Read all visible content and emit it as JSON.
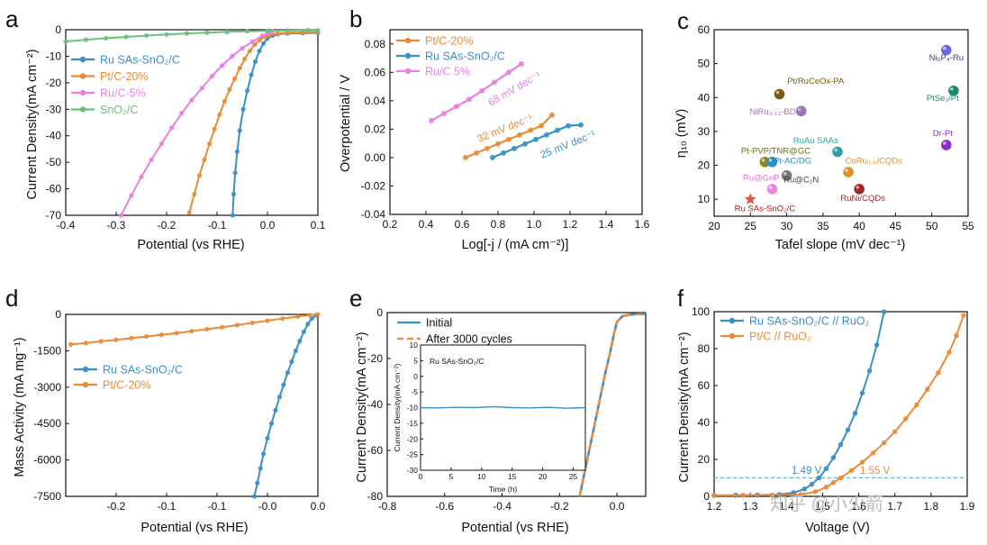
{
  "figure": {
    "watermark": "知乎 @小火箭"
  },
  "colors": {
    "blue": "#3b8fc8",
    "orange": "#ec8b35",
    "pink": "#e980e0",
    "green": "#6ec07c",
    "dash": "#58b9c5"
  },
  "chart_data": [
    {
      "id": "a",
      "letter": "a",
      "type": "line",
      "xlabel": "Potential (vs RHE)",
      "ylabel": "Current Density(mA cm⁻²)",
      "xlim": [
        -0.4,
        0.1
      ],
      "ylim": [
        -70,
        0
      ],
      "xticks": [
        -0.4,
        -0.3,
        -0.2,
        -0.1,
        0.0,
        0.1
      ],
      "xtick_labels": [
        "-0.4",
        "-0.3",
        "-0.2",
        "-0.1",
        "0.0",
        "0.1"
      ],
      "yticks": [
        0,
        -10,
        -20,
        -30,
        -40,
        -50,
        -60,
        -70
      ],
      "ytick_labels": [
        "0",
        "-10",
        "-20",
        "-30",
        "-40",
        "-50",
        "-60",
        "-70"
      ],
      "legend": [
        "Ru SAs-SnO₂/C",
        "Pt/C-20%",
        "Ru/C-5%",
        "SnO₂/C"
      ],
      "series": [
        {
          "name": "Ru SAs-SnO₂/C",
          "color": "blue",
          "x": [
            -0.069,
            -0.067,
            -0.064,
            -0.06,
            -0.055,
            -0.048,
            -0.04,
            -0.032,
            -0.024,
            -0.016,
            -0.008,
            0.0,
            0.01,
            0.02,
            0.04,
            0.07,
            0.1
          ],
          "y": [
            -70,
            -62,
            -54,
            -46,
            -38,
            -30,
            -23,
            -17,
            -12,
            -8,
            -5.2,
            -3.3,
            -2.2,
            -1.7,
            -1.4,
            -1.3,
            -1.2
          ]
        },
        {
          "name": "Pt/C-20%",
          "color": "orange",
          "x": [
            -0.155,
            -0.145,
            -0.135,
            -0.125,
            -0.115,
            -0.105,
            -0.095,
            -0.085,
            -0.075,
            -0.065,
            -0.055,
            -0.045,
            -0.035,
            -0.025,
            -0.015,
            -0.005,
            0.005,
            0.02,
            0.04,
            0.07,
            0.1
          ],
          "y": [
            -69,
            -62,
            -55,
            -49,
            -43,
            -37.5,
            -32,
            -27,
            -22.5,
            -18.5,
            -14.5,
            -11,
            -8,
            -5.6,
            -3.8,
            -2.6,
            -1.9,
            -1.4,
            -1.1,
            -1.0,
            -0.9
          ]
        },
        {
          "name": "Ru/C-5%",
          "color": "pink",
          "x": [
            -0.29,
            -0.27,
            -0.25,
            -0.23,
            -0.21,
            -0.19,
            -0.17,
            -0.15,
            -0.13,
            -0.11,
            -0.09,
            -0.07,
            -0.05,
            -0.03,
            -0.01,
            0.0,
            0.01
          ],
          "y": [
            -70,
            -62.5,
            -55.5,
            -49,
            -43,
            -37,
            -31.5,
            -26.5,
            -22,
            -17.5,
            -13.5,
            -10,
            -7,
            -4.5,
            -2.3,
            -1.3,
            -0.6
          ]
        },
        {
          "name": "SnO₂/C",
          "color": "green",
          "x": [
            -0.4,
            -0.36,
            -0.32,
            -0.28,
            -0.24,
            -0.2,
            -0.16,
            -0.12,
            -0.08,
            -0.04,
            0.0,
            0.04,
            0.08,
            0.1
          ],
          "y": [
            -4.4,
            -3.8,
            -3.2,
            -2.7,
            -2.2,
            -1.8,
            -1.4,
            -1.1,
            -0.8,
            -0.6,
            -0.4,
            -0.3,
            -0.2,
            -0.2
          ]
        }
      ]
    },
    {
      "id": "b",
      "letter": "b",
      "type": "line",
      "xlabel": "Log[-j / (mA cm⁻²)]",
      "ylabel": "Overpotential / V",
      "xlim": [
        0.2,
        1.6
      ],
      "ylim": [
        -0.04,
        0.09
      ],
      "xticks": [
        0.2,
        0.4,
        0.6,
        0.8,
        1.0,
        1.2,
        1.4,
        1.6
      ],
      "xtick_labels": [
        "0.2",
        "0.4",
        "0.6",
        "0.8",
        "1.0",
        "1.2",
        "1.4",
        "1.6"
      ],
      "yticks": [
        -0.04,
        -0.02,
        0.0,
        0.02,
        0.04,
        0.06,
        0.08
      ],
      "ytick_labels": [
        "-0.04",
        "-0.02",
        "0.00",
        "0.02",
        "0.04",
        "0.06",
        "0.08"
      ],
      "legend": [
        "Pt/C-20%",
        "Ru SAs-SnO₂/C",
        "Ru/C 5%"
      ],
      "annotations": [
        "68 mV dec⁻¹",
        "32 mV dec⁻¹",
        "25 mV dec⁻¹"
      ],
      "series": [
        {
          "name": "Pt/C-20%",
          "color": "orange",
          "tafel": 32,
          "x": [
            0.62,
            0.68,
            0.74,
            0.8,
            0.86,
            0.92,
            0.98,
            1.04,
            1.1
          ],
          "y": [
            0.0,
            0.0032,
            0.0064,
            0.0096,
            0.0128,
            0.016,
            0.0192,
            0.0224,
            0.03
          ]
        },
        {
          "name": "Ru SAs-SnO₂/C",
          "color": "blue",
          "tafel": 25,
          "x": [
            0.77,
            0.83,
            0.89,
            0.95,
            1.01,
            1.07,
            1.13,
            1.19,
            1.26
          ],
          "y": [
            0.0,
            0.0032,
            0.0064,
            0.0096,
            0.0128,
            0.016,
            0.0192,
            0.0224,
            0.023
          ]
        },
        {
          "name": "Ru/C 5%",
          "color": "pink",
          "tafel": 68,
          "x": [
            0.43,
            0.5,
            0.57,
            0.64,
            0.71,
            0.78,
            0.86,
            0.93
          ],
          "y": [
            0.026,
            0.031,
            0.036,
            0.041,
            0.047,
            0.053,
            0.06,
            0.066
          ]
        }
      ]
    },
    {
      "id": "c",
      "letter": "c",
      "type": "scatter",
      "xlabel": "Tafel slope (mV dec⁻¹)",
      "ylabel": "η₁₀ (mV)",
      "xlim": [
        20,
        55
      ],
      "ylim": [
        5,
        60
      ],
      "xticks": [
        20,
        25,
        30,
        35,
        40,
        45,
        50,
        55
      ],
      "xtick_labels": [
        "20",
        "25",
        "30",
        "35",
        "40",
        "45",
        "50",
        "55"
      ],
      "yticks": [
        10,
        20,
        30,
        40,
        50,
        60
      ],
      "ytick_labels": [
        "10",
        "20",
        "30",
        "40",
        "50",
        "60"
      ],
      "points": [
        {
          "label": "Ni₅P₄-Ru",
          "x": 52,
          "y": 54,
          "color": "#6d68d8",
          "lx": 52,
          "ly": 51,
          "lcolor": "#3a3aa0"
        },
        {
          "label": "PtSe₂/Pt",
          "x": 53,
          "y": 42,
          "color": "#1f8a72",
          "lx": 51.5,
          "ly": 39,
          "lcolor": "#1f8a72"
        },
        {
          "label": "Pt/RuCeOx-PA",
          "x": 29,
          "y": 41,
          "color": "#7a5a12",
          "lx": 34,
          "ly": 44,
          "lcolor": "#7a5a12"
        },
        {
          "label": "NiRu₀.₁₃-BDC",
          "x": 32,
          "y": 36,
          "color": "#9a78b8",
          "lx": 28.5,
          "ly": 35,
          "lcolor": "#9a78b8"
        },
        {
          "label": "Dr-Pt",
          "x": 52,
          "y": 26,
          "color": "#8b2fc9",
          "lx": 51.5,
          "ly": 28.7,
          "lcolor": "#8b2fc9"
        },
        {
          "label": "RuAu SAAs",
          "x": 37,
          "y": 24,
          "color": "#2ea0a4",
          "lx": 34,
          "ly": 26.5,
          "lcolor": "#2ea0a4"
        },
        {
          "label": "Pt-PVP/TNR@GC",
          "x": 27,
          "y": 21,
          "color": "#8a8a1a",
          "lx": 28.5,
          "ly": 23.5,
          "lcolor": "#6a6a10"
        },
        {
          "label": "Pt-AC/DG",
          "x": 28,
          "y": 21,
          "color": "#2a8ec8",
          "lx": 30.8,
          "ly": 20.5,
          "lcolor": "#2a8ec8"
        },
        {
          "label": "CoRu₀.₅/CQDs",
          "x": 38.5,
          "y": 18,
          "color": "#e0922a",
          "lx": 42,
          "ly": 20.5,
          "lcolor": "#e0922a"
        },
        {
          "label": "Ru@C₂N",
          "x": 30,
          "y": 17,
          "color": "#777777",
          "lx": 32,
          "ly": 15,
          "lcolor": "#444444"
        },
        {
          "label": "Ru@GnP",
          "x": 28,
          "y": 13,
          "color": "#e88ae0",
          "lx": 26.5,
          "ly": 15.5,
          "lcolor": "#e070d8"
        },
        {
          "label": "RuNi/CQDs",
          "x": 40,
          "y": 13,
          "color": "#a02828",
          "lx": 40.5,
          "ly": 9.5,
          "lcolor": "#a02828"
        },
        {
          "label": "Ru SAs-SnO₂/C",
          "x": 25,
          "y": 10,
          "color": "#e4524c",
          "star": true,
          "lx": 27,
          "ly": 6.5,
          "lcolor": "#b01818"
        }
      ]
    },
    {
      "id": "d",
      "letter": "d",
      "type": "line",
      "xlabel": "Potential (vs RHE)",
      "ylabel": "Mass Activity (mA mg⁻¹)",
      "xlim": [
        -0.25,
        0.0
      ],
      "ylim": [
        -7500,
        0
      ],
      "xticks": [
        -0.2,
        -0.15,
        -0.1,
        -0.05,
        0.0
      ],
      "xtick_labels": [
        "-0.2",
        "-0.1",
        "-0.1",
        "-0.0",
        "0.0"
      ],
      "yticks": [
        0,
        -1500,
        -3000,
        -4500,
        -6000,
        -7500
      ],
      "ytick_labels": [
        "0",
        "-1500",
        "-3000",
        "-4500",
        "-6000",
        "-7500"
      ],
      "legend": [
        "Ru SAs-SnO₂/C",
        "Pt/C-20%"
      ],
      "series": [
        {
          "name": "Ru SAs-SnO₂/C",
          "color": "blue",
          "x": [
            -0.063,
            -0.06,
            -0.057,
            -0.054,
            -0.05,
            -0.046,
            -0.042,
            -0.038,
            -0.034,
            -0.03,
            -0.026,
            -0.022,
            -0.018,
            -0.014,
            -0.01,
            -0.006,
            -0.002
          ],
          "y": [
            -7500,
            -6950,
            -6350,
            -5750,
            -5100,
            -4500,
            -3950,
            -3400,
            -2900,
            -2400,
            -1950,
            -1500,
            -1100,
            -720,
            -400,
            -170,
            -40
          ]
        },
        {
          "name": "Pt/C-20%",
          "color": "orange",
          "x": [
            -0.245,
            -0.23,
            -0.215,
            -0.2,
            -0.185,
            -0.17,
            -0.155,
            -0.14,
            -0.125,
            -0.11,
            -0.095,
            -0.08,
            -0.065,
            -0.05,
            -0.035,
            -0.02,
            -0.008,
            0.0
          ],
          "y": [
            -1240,
            -1180,
            -1110,
            -1050,
            -980,
            -910,
            -840,
            -770,
            -690,
            -610,
            -530,
            -440,
            -350,
            -260,
            -170,
            -90,
            -30,
            0
          ]
        }
      ]
    },
    {
      "id": "e",
      "letter": "e",
      "type": "line",
      "xlabel": "Potential (vs RHE)",
      "ylabel": "Current Density(mA cm⁻²)",
      "xlim": [
        -0.8,
        0.1
      ],
      "ylim": [
        -80,
        0
      ],
      "xticks": [
        -0.8,
        -0.6,
        -0.4,
        -0.2,
        0.0
      ],
      "xtick_labels": [
        "-0.8",
        "-0.6",
        "-0.4",
        "-0.2",
        "0.0"
      ],
      "yticks": [
        0,
        -20,
        -40,
        -60,
        -80
      ],
      "ytick_labels": [
        "0",
        "-20",
        "-40",
        "-60",
        "-80"
      ],
      "legend": [
        "Initial",
        "After 3000 cycles"
      ],
      "series": [
        {
          "name": "Initial",
          "color": "blue",
          "x": [
            -0.13,
            -0.115,
            -0.1,
            -0.085,
            -0.07,
            -0.055,
            -0.04,
            -0.025,
            -0.01,
            0.0,
            0.02,
            0.05,
            0.1
          ],
          "y": [
            -80,
            -71,
            -62,
            -53,
            -44,
            -35,
            -26,
            -18,
            -9,
            -4,
            -1.5,
            -0.8,
            -0.5
          ]
        },
        {
          "name": "After 3000 cycles",
          "color": "orange",
          "dashed": true,
          "x": [
            -0.13,
            -0.115,
            -0.1,
            -0.085,
            -0.07,
            -0.055,
            -0.04,
            -0.025,
            -0.01,
            0.0,
            0.02,
            0.05,
            0.1
          ],
          "y": [
            -80,
            -71,
            -62,
            -53,
            -44,
            -35,
            -26,
            -18,
            -9,
            -4,
            -1.5,
            -0.8,
            -0.5
          ]
        }
      ],
      "inset": {
        "label": "Ru SAs-SnO₂/C",
        "xlabel": "Time (h)",
        "ylabel": "Current Density(mA cm⁻²)",
        "xlim": [
          0,
          27
        ],
        "ylim": [
          -30,
          10
        ],
        "xticks": [
          0,
          5,
          10,
          15,
          20,
          25
        ],
        "xtick_labels": [
          "0",
          "5",
          "10",
          "15",
          "20",
          "25"
        ],
        "yticks": [
          10,
          5,
          0,
          -5,
          -10,
          -15,
          -20,
          -25,
          -30
        ],
        "ytick_labels": [
          "10",
          "5",
          "0",
          "-5",
          "-10",
          "-15",
          "-20",
          "-25",
          "-30"
        ],
        "x": [
          0,
          3,
          6,
          9,
          12,
          15,
          18,
          21,
          24,
          27
        ],
        "y": [
          -10,
          -10.1,
          -9.9,
          -10,
          -9.7,
          -10,
          -10.1,
          -9.9,
          -10.2,
          -10
        ]
      }
    },
    {
      "id": "f",
      "letter": "f",
      "type": "line",
      "xlabel": "Voltage (V)",
      "ylabel": "Current Density(mA cm⁻²)",
      "xlim": [
        1.2,
        1.9
      ],
      "ylim": [
        0,
        100
      ],
      "xticks": [
        1.2,
        1.3,
        1.4,
        1.5,
        1.6,
        1.7,
        1.8,
        1.9
      ],
      "xtick_labels": [
        "1.2",
        "1.3",
        "1.4",
        "1.5",
        "1.6",
        "1.7",
        "1.8",
        "1.9"
      ],
      "yticks": [
        0,
        20,
        40,
        60,
        80,
        100
      ],
      "ytick_labels": [
        "0",
        "20",
        "40",
        "60",
        "80",
        "100"
      ],
      "legend": [
        "Ru SAs-SnO₂/C // RuO₂",
        "Pt/C // RuO₂"
      ],
      "reference_line": 10,
      "annotations": [
        "1.49 V",
        "1.55 V"
      ],
      "series": [
        {
          "name": "Ru SAs-SnO₂/C // RuO₂",
          "color": "blue",
          "x": [
            1.2,
            1.26,
            1.32,
            1.38,
            1.42,
            1.45,
            1.47,
            1.49,
            1.51,
            1.53,
            1.55,
            1.57,
            1.59,
            1.61,
            1.63,
            1.65,
            1.67
          ],
          "y": [
            0.5,
            0.6,
            0.7,
            1.0,
            2.0,
            4.0,
            6.5,
            10,
            15,
            21,
            28,
            36,
            45,
            56,
            68,
            82,
            100
          ]
        },
        {
          "name": "Pt/C // RuO₂",
          "color": "orange",
          "x": [
            1.2,
            1.28,
            1.36,
            1.44,
            1.48,
            1.51,
            1.53,
            1.55,
            1.58,
            1.61,
            1.64,
            1.67,
            1.7,
            1.73,
            1.76,
            1.79,
            1.82,
            1.85,
            1.87,
            1.89
          ],
          "y": [
            0.5,
            0.6,
            0.7,
            1.0,
            2.5,
            5,
            7.5,
            10,
            14,
            18.5,
            23.5,
            29,
            35,
            42,
            49.5,
            58,
            67,
            78,
            87,
            98
          ]
        }
      ]
    }
  ]
}
